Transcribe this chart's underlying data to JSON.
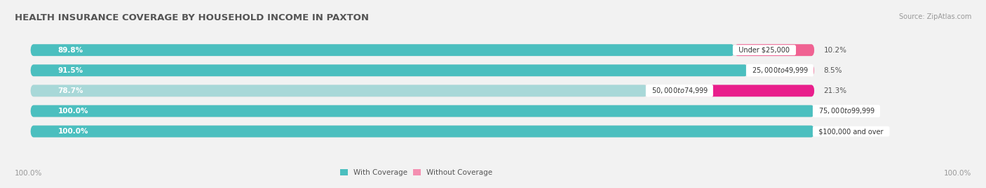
{
  "title": "HEALTH INSURANCE COVERAGE BY HOUSEHOLD INCOME IN PAXTON",
  "source": "Source: ZipAtlas.com",
  "categories": [
    "Under $25,000",
    "$25,000 to $49,999",
    "$50,000 to $74,999",
    "$75,000 to $99,999",
    "$100,000 and over"
  ],
  "with_coverage": [
    89.8,
    91.5,
    78.7,
    100.0,
    100.0
  ],
  "without_coverage": [
    10.2,
    8.5,
    21.3,
    0.0,
    0.0
  ],
  "color_with": "#4bbfbf",
  "color_with_light": "#a8dede",
  "color_without_dark": "#f06292",
  "color_without_light": "#f8bbd0",
  "bg_color": "#f2f2f2",
  "bar_bg": "#e0e0e0",
  "title_fontsize": 9.5,
  "label_fontsize": 7.5,
  "tick_fontsize": 7.5,
  "bar_height": 0.58,
  "xlim": [
    0,
    100
  ]
}
